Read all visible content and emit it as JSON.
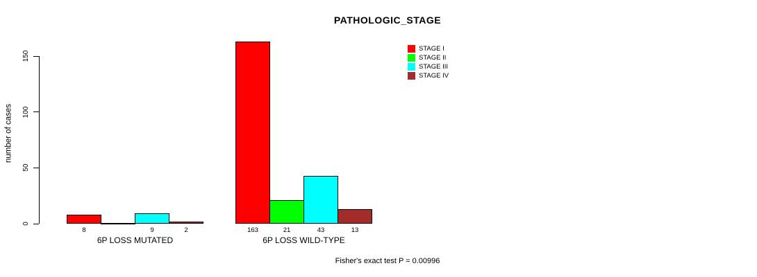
{
  "chart_data": {
    "type": "bar",
    "title": "PATHOLOGIC_STAGE",
    "ylabel": "number of cases",
    "xlabel": "",
    "ylim": [
      0,
      150
    ],
    "yticks": [
      0,
      50,
      100,
      150
    ],
    "grid": false,
    "legend_position": "top-right-inside",
    "background": "#FFFFFF",
    "axis_color": "#000000",
    "categories": [
      "6P LOSS MUTATED",
      "6P LOSS WILD-TYPE"
    ],
    "series": [
      {
        "name": "STAGE I",
        "color": "#FF0000",
        "values": [
          8,
          163
        ]
      },
      {
        "name": "STAGE II",
        "color": "#00FF00",
        "values": [
          0,
          21
        ]
      },
      {
        "name": "STAGE III",
        "color": "#00FFFF",
        "values": [
          9,
          43
        ]
      },
      {
        "name": "STAGE IV",
        "color": "#A52A2A",
        "values": [
          2,
          13
        ]
      }
    ],
    "bar_value_labels": [
      [
        "8",
        "",
        "9",
        "2"
      ],
      [
        "163",
        "21",
        "43",
        "13"
      ]
    ],
    "annotation": "Fisher's exact test P = 0.00996"
  }
}
